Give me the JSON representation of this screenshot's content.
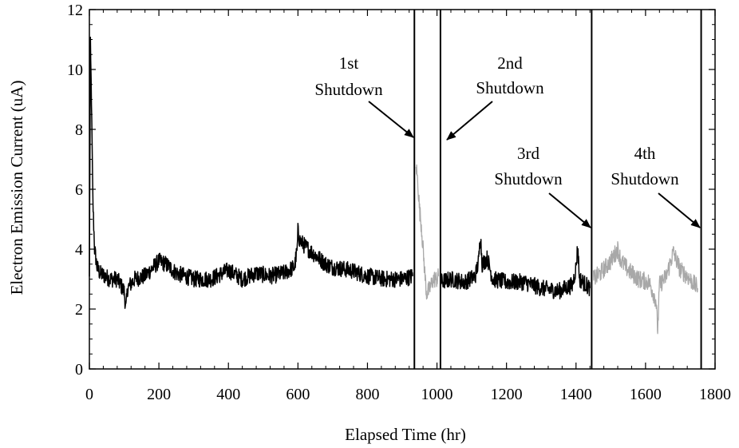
{
  "chart_data": {
    "type": "line",
    "title": "",
    "xlabel": "Elapsed Time (hr)",
    "ylabel": "Electron Emission Current (uA)",
    "xlim": [
      0,
      1800
    ],
    "ylim": [
      0,
      12
    ],
    "xticks": [
      0,
      200,
      400,
      600,
      800,
      1000,
      1200,
      1400,
      1600,
      1800
    ],
    "yticks": [
      0,
      2,
      4,
      6,
      8,
      10,
      12
    ],
    "grid": false,
    "legend": "none",
    "series": [
      {
        "style": "black",
        "color": "#000000",
        "noise": 0.28,
        "x": [
          0,
          3,
          6,
          10,
          15,
          22,
          30,
          45,
          60,
          80,
          100,
          105,
          110,
          130,
          160,
          200,
          220,
          250,
          300,
          350,
          400,
          440,
          480,
          520,
          560,
          590,
          598,
          600,
          605,
          620,
          650,
          680,
          700,
          750,
          800,
          850,
          900,
          930
        ],
        "y": [
          3.0,
          10.8,
          9.0,
          5.6,
          4.0,
          3.4,
          3.2,
          3.1,
          3.0,
          3.0,
          2.6,
          2.0,
          2.7,
          3.0,
          3.1,
          3.6,
          3.5,
          3.2,
          3.0,
          3.0,
          3.3,
          3.0,
          3.2,
          3.1,
          3.2,
          3.4,
          4.0,
          4.6,
          4.3,
          4.1,
          3.8,
          3.5,
          3.4,
          3.3,
          3.1,
          3.0,
          3.0,
          3.1
        ]
      },
      {
        "style": "gray",
        "color": "#a8a8a8",
        "noise": 0.3,
        "x": [
          940,
          945,
          950,
          955,
          960,
          965,
          970,
          980,
          990,
          1000,
          1005
        ],
        "y": [
          6.8,
          6.2,
          5.3,
          4.8,
          4.0,
          3.2,
          2.5,
          2.7,
          3.0,
          3.0,
          3.1
        ]
      },
      {
        "style": "black",
        "color": "#000000",
        "noise": 0.28,
        "x": [
          1010,
          1040,
          1080,
          1110,
          1120,
          1125,
          1130,
          1145,
          1160,
          1200,
          1250,
          1300,
          1350,
          1390,
          1400,
          1405,
          1410,
          1440
        ],
        "y": [
          2.9,
          3.0,
          2.9,
          3.1,
          3.6,
          4.5,
          3.5,
          3.7,
          3.0,
          2.9,
          2.9,
          2.7,
          2.6,
          2.8,
          3.4,
          4.1,
          3.0,
          2.7
        ]
      },
      {
        "style": "gray",
        "color": "#a8a8a8",
        "noise": 0.3,
        "x": [
          1450,
          1470,
          1500,
          1520,
          1530,
          1550,
          1580,
          1610,
          1630,
          1635,
          1640,
          1660,
          1680,
          1700,
          1720,
          1750
        ],
        "y": [
          3.0,
          3.2,
          3.6,
          4.0,
          3.6,
          3.3,
          3.0,
          2.9,
          2.3,
          1.3,
          2.8,
          3.1,
          3.9,
          3.3,
          3.1,
          2.7
        ]
      }
    ],
    "shutdowns": [
      {
        "x": 935,
        "label_line1": "1st",
        "label_line2": "Shutdown"
      },
      {
        "x": 1010,
        "label_line1": "2nd",
        "label_line2": "Shutdown"
      },
      {
        "x": 1445,
        "label_line1": "3rd",
        "label_line2": "Shutdown"
      },
      {
        "x": 1760,
        "label_line1": "4th",
        "label_line2": "Shutdown"
      }
    ]
  }
}
